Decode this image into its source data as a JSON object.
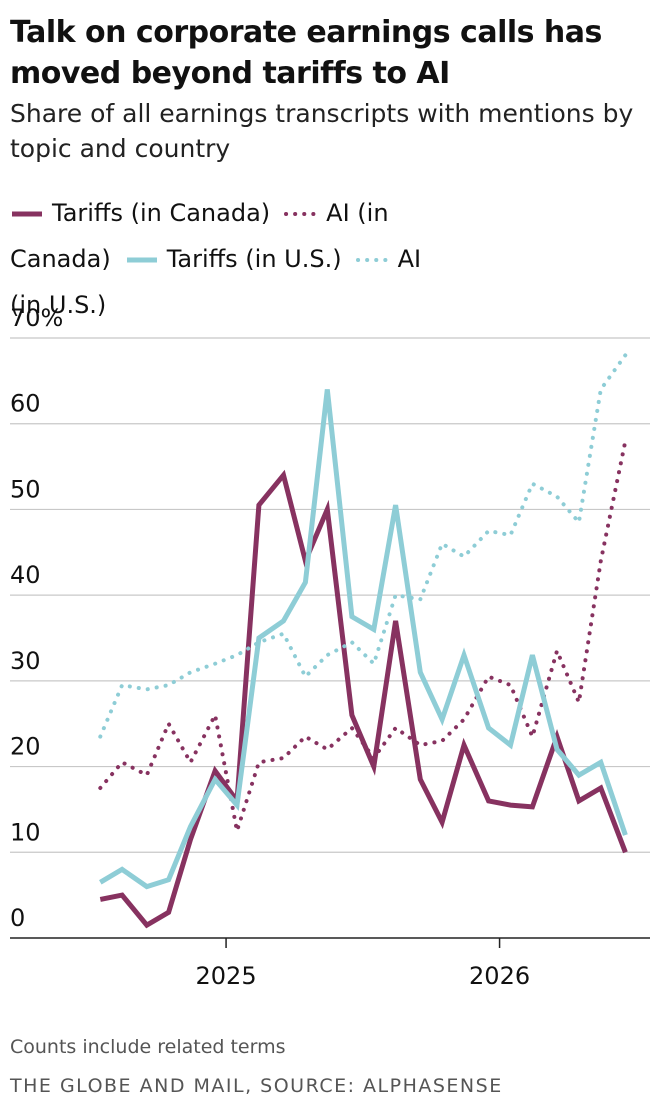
{
  "chart_data": {
    "type": "line",
    "title": "Talk on corporate earnings calls has moved beyond tariffs to AI",
    "subtitle": "Share of all earnings transcripts with mentions by topic and country",
    "x": [
      2024.54,
      2024.62,
      2024.71,
      2024.79,
      2024.87,
      2024.96,
      2025.04,
      2025.12,
      2025.21,
      2025.29,
      2025.37,
      2025.46,
      2025.54,
      2025.62,
      2025.71,
      2025.79,
      2025.87,
      2025.96,
      2026.04,
      2026.12,
      2026.21,
      2026.29,
      2026.37,
      2026.46
    ],
    "series": [
      {
        "name": "Tariffs (in Canada)",
        "color": "#873260",
        "line_style": "solid",
        "values": [
          4.5,
          5,
          1.5,
          3,
          11.5,
          19.5,
          16,
          50.5,
          54,
          44,
          50,
          26,
          20,
          37,
          18.5,
          13.5,
          22.5,
          16,
          15.5,
          15.3,
          23.5,
          16,
          17.5,
          10
        ]
      },
      {
        "name": "AI (in Canada)",
        "color": "#873260",
        "line_style": "dotted",
        "values": [
          17.5,
          20.5,
          19,
          25,
          20.5,
          26,
          12.5,
          20.5,
          21,
          23.5,
          22,
          24.5,
          21,
          24.5,
          22.5,
          23,
          25.5,
          30.5,
          29.5,
          23.5,
          33.5,
          27.5,
          44,
          58
        ]
      },
      {
        "name": "Tariffs (in U.S.)",
        "color": "#8ecdd6",
        "line_style": "solid",
        "values": [
          6.5,
          8,
          6,
          6.8,
          13,
          18.5,
          15.5,
          35,
          37,
          41.5,
          64,
          37.5,
          36,
          50.5,
          31,
          25.5,
          33,
          24.5,
          22.5,
          33,
          22,
          19,
          20.5,
          12
        ]
      },
      {
        "name": "AI (in U.S.)",
        "color": "#8ecdd6",
        "line_style": "dotted",
        "values": [
          23.5,
          29.5,
          29,
          29.5,
          31,
          32,
          33,
          34.5,
          35.5,
          30.5,
          33,
          34.5,
          32,
          40,
          39.5,
          46,
          44.5,
          47.5,
          47,
          53,
          51.5,
          48.5,
          64,
          68
        ]
      }
    ],
    "xlim": [
      2024.21,
      2026.55
    ],
    "xticks": [
      2025,
      2026
    ],
    "ylim": [
      0,
      70
    ],
    "yticks": [
      0,
      10,
      20,
      30,
      40,
      50,
      60,
      {
        "value": 70,
        "label": "70%"
      }
    ],
    "grid": true,
    "note": "Counts include related terms",
    "source": "THE GLOBE AND MAIL, SOURCE: ALPHASENSE"
  }
}
